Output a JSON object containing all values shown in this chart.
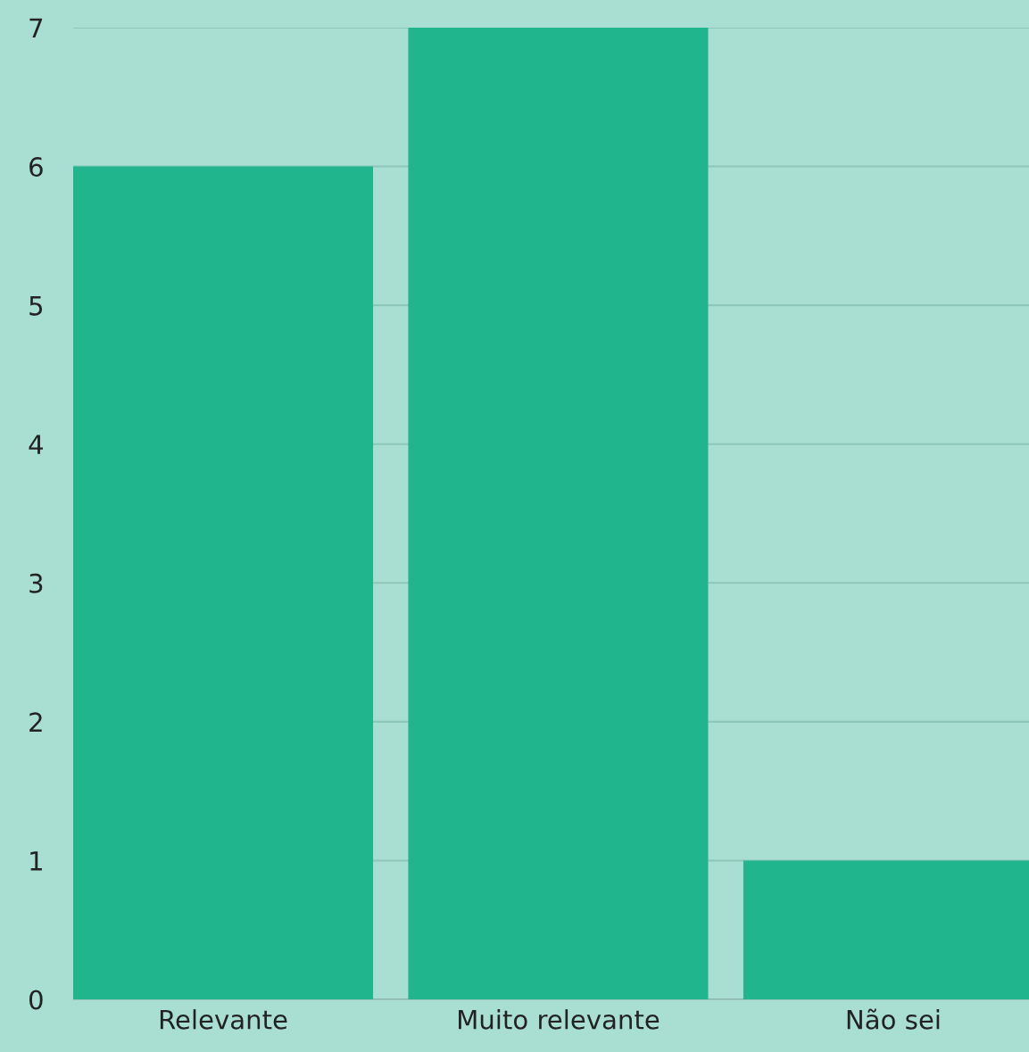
{
  "chart_data": {
    "type": "bar",
    "categories": [
      "Relevante",
      "Muito relevante",
      "Não sei"
    ],
    "values": [
      6,
      7,
      1
    ],
    "color": "#20b58c",
    "ylim": [
      0,
      7
    ],
    "yticks": [
      0,
      1,
      2,
      3,
      4,
      5,
      6,
      7
    ],
    "grid": "y"
  }
}
